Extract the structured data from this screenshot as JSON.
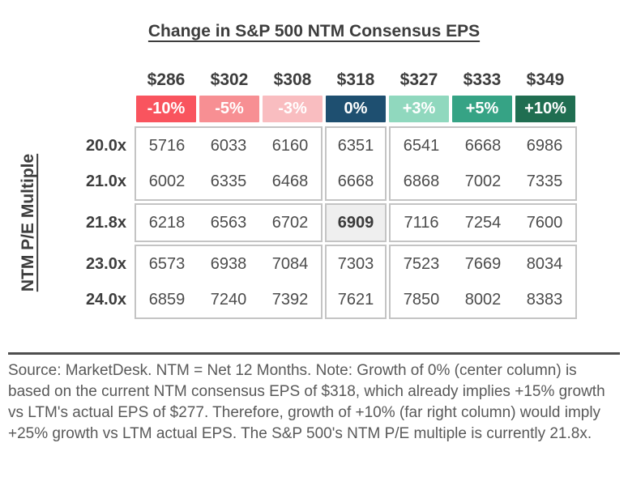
{
  "chart_data": {
    "type": "heatmap",
    "title": "Change in S&P 500 NTM Consensus EPS",
    "x_axis": {
      "eps_labels": [
        "$286",
        "$302",
        "$308",
        "$318",
        "$327",
        "$333",
        "$349"
      ],
      "growth_labels": [
        "-10%",
        "-5%",
        "-3%",
        "0%",
        "+3%",
        "+5%",
        "+10%"
      ],
      "growth_colors": [
        "#f9545e",
        "#f78f93",
        "#f9bdc0",
        "#1e4f70",
        "#90d8be",
        "#36a385",
        "#206e51"
      ]
    },
    "y_axis": {
      "label": "NTM P/E Multiple",
      "pe_multiples": [
        "20.0x",
        "21.0x",
        "21.8x",
        "23.0x",
        "24.0x"
      ]
    },
    "values": [
      [
        5716,
        6033,
        6160,
        6351,
        6541,
        6668,
        6986
      ],
      [
        6002,
        6335,
        6468,
        6668,
        6868,
        7002,
        7335
      ],
      [
        6218,
        6563,
        6702,
        6909,
        7116,
        7254,
        7600
      ],
      [
        6573,
        6938,
        7084,
        7303,
        7523,
        7669,
        8034
      ],
      [
        6859,
        7240,
        7392,
        7621,
        7850,
        8002,
        8383
      ]
    ],
    "highlight": {
      "row_index": 2,
      "col_index": 3,
      "row_label": "21.8x",
      "col_label": "0%",
      "value": 6909
    },
    "layout": {
      "row_group_split": [
        [
          0,
          1
        ],
        [
          2
        ],
        [
          3,
          4
        ]
      ],
      "col_group_split": [
        [
          0,
          1,
          2
        ],
        [
          3
        ],
        [
          4,
          5,
          6
        ]
      ]
    },
    "footnote": "Source: MarketDesk. NTM = Net 12 Months. Note: Growth of 0% (center column) is based on the current NTM consensus EPS of $318, which already implies +15% growth vs LTM's actual EPS of $277. Therefore, growth of +10% (far right column) would imply +25% growth vs LTM actual EPS. The S&P 500's NTM P/E multiple is currently 21.8x."
  }
}
